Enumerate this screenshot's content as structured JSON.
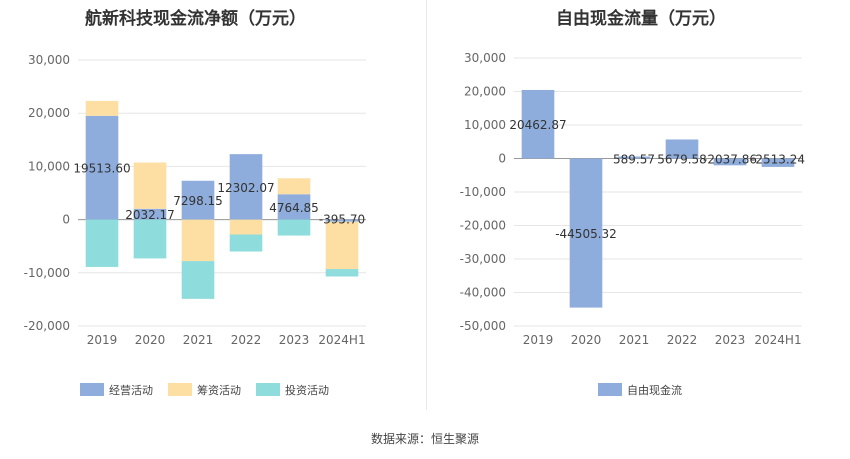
{
  "left_chart_title": "航新科技现金流净额（万元）",
  "right_chart_title": "自由现金流量（万元）",
  "source": "数据来源：恒生聚源",
  "colors": {
    "operating": "#8eaddc",
    "financing": "#fddfa4",
    "investing": "#8fdcdc",
    "free_cash_flow": "#8eaddc",
    "grid": "#e6e6e6",
    "axis_text": "#666666"
  },
  "chart_data": [
    {
      "type": "bar",
      "stacked": true,
      "title": "航新科技现金流净额（万元）",
      "categories": [
        "2019",
        "2020",
        "2021",
        "2022",
        "2023",
        "2024H1"
      ],
      "ylim": [
        -20000,
        30000
      ],
      "y_ticks": [
        "30,000",
        "20,000",
        "10,000",
        "0",
        "-10,000",
        "-20,000"
      ],
      "grid": true,
      "legend_position": "bottom",
      "series": [
        {
          "name": "经营活动",
          "values": [
            19513.6,
            2032.17,
            7298.15,
            12302.07,
            4764.85,
            -395.7
          ]
        },
        {
          "name": "筹资活动",
          "values": [
            2800,
            8700,
            -7800,
            -2800,
            3000,
            -8900
          ]
        },
        {
          "name": "投资活动",
          "values": [
            -8900,
            -7300,
            -7100,
            -3200,
            -3000,
            -1400
          ]
        }
      ],
      "data_labels": [
        "19513.60",
        "2032.17",
        "7298.15",
        "12302.07",
        "4764.85",
        "-395.70"
      ]
    },
    {
      "type": "bar",
      "title": "自由现金流量（万元）",
      "categories": [
        "2019",
        "2020",
        "2021",
        "2022",
        "2023",
        "2024H1"
      ],
      "ylim": [
        -50000,
        30000
      ],
      "y_ticks": [
        "30,000",
        "20,000",
        "10,000",
        "0",
        "-10,000",
        "-20,000",
        "-30,000",
        "-40,000",
        "-50,000"
      ],
      "grid": true,
      "legend_position": "bottom",
      "series": [
        {
          "name": "自由现金流",
          "values": [
            20462.87,
            -44505.32,
            589.57,
            5679.58,
            -2037.86,
            -2513.24
          ]
        }
      ],
      "data_labels": [
        "20462.87",
        "-44505.32",
        "589.57",
        "5679.58",
        "-2037.86",
        "-2513.24"
      ]
    }
  ]
}
